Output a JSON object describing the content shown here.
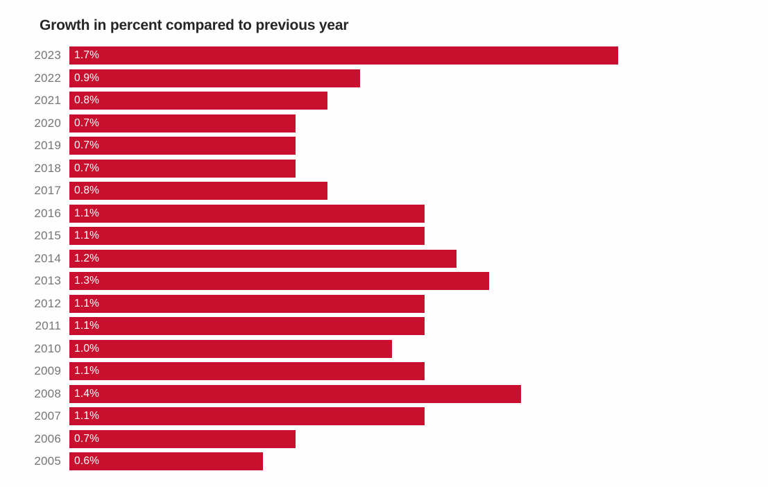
{
  "title": "Growth in percent compared to previous year",
  "chart_data": {
    "type": "bar",
    "orientation": "horizontal",
    "title": "Growth in percent compared to previous year",
    "xlabel": "",
    "ylabel": "",
    "xlim": [
      0,
      1.7
    ],
    "grid": false,
    "legend": false,
    "categories": [
      "2023",
      "2022",
      "2021",
      "2020",
      "2019",
      "2018",
      "2017",
      "2016",
      "2015",
      "2014",
      "2013",
      "2012",
      "2011",
      "2010",
      "2009",
      "2008",
      "2007",
      "2006",
      "2005"
    ],
    "values": [
      1.7,
      0.9,
      0.8,
      0.7,
      0.7,
      0.7,
      0.8,
      1.1,
      1.1,
      1.2,
      1.3,
      1.1,
      1.1,
      1.0,
      1.1,
      1.4,
      1.1,
      0.7,
      0.6
    ],
    "value_labels": [
      "1.7%",
      "0.9%",
      "0.8%",
      "0.7%",
      "0.7%",
      "0.7%",
      "0.8%",
      "1.1%",
      "1.1%",
      "1.2%",
      "1.3%",
      "1.1%",
      "1.1%",
      "1.0%",
      "1.1%",
      "1.4%",
      "1.1%",
      "0.7%",
      "0.6%"
    ]
  },
  "colors": {
    "bar": "#C8102E",
    "year_label": "#757575",
    "value_text": "#FFFFFF",
    "title_text": "#262626",
    "background": "#FFFEFE"
  }
}
